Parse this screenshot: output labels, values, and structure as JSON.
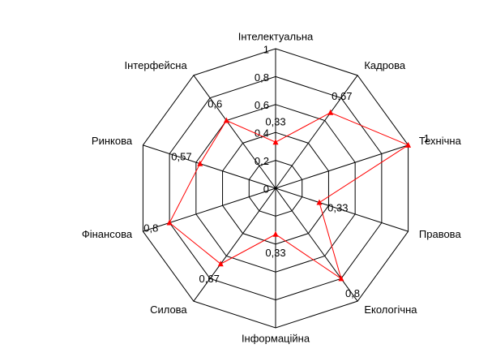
{
  "chart_data": {
    "type": "radar",
    "categories": [
      "Інтелектуальна",
      "Кадрова",
      "Технічна",
      "Правова",
      "Екологічна",
      "Інформаційна",
      "Силова",
      "Фінансова",
      "Ринкова",
      "Інтерфейсна"
    ],
    "values": [
      0.33,
      0.67,
      1,
      0.33,
      0.8,
      0.33,
      0.67,
      0.8,
      0.57,
      0.6
    ],
    "value_labels": [
      "0,33",
      "0,67",
      "1",
      "0,33",
      "0,8",
      "0,33",
      "0,67",
      "0,8",
      "0,57",
      "0,6"
    ],
    "color": "#ff0000",
    "rlim": [
      0,
      1
    ],
    "rticks": [
      0,
      {
        "value": 0.2,
        "label": "0,2"
      },
      {
        "value": 0.4,
        "label": "0,4"
      },
      {
        "value": 0.6,
        "label": "0,6"
      },
      {
        "value": 0.8,
        "label": "0,8"
      },
      1
    ],
    "grid": true
  }
}
